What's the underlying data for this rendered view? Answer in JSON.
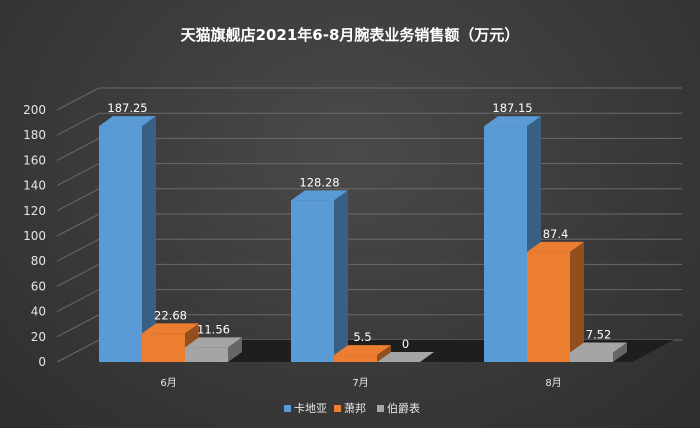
{
  "chart_data": {
    "type": "bar",
    "title": "天猫旗舰店2021年6-8月腕表业务销售额（万元）",
    "categories": [
      "6月",
      "7月",
      "8月"
    ],
    "series": [
      {
        "name": "卡地亚",
        "values": [
          187.25,
          128.28,
          187.15
        ],
        "color": "#5b9bd5"
      },
      {
        "name": "萧邦",
        "values": [
          22.68,
          5.5,
          87.4
        ],
        "color": "#ed7d31"
      },
      {
        "name": "伯爵表",
        "values": [
          11.56,
          0,
          7.52
        ],
        "color": "#a5a5a5"
      }
    ],
    "data_labels": [
      [
        "187.25",
        "128.28",
        "187.15"
      ],
      [
        "22.68",
        "5.5",
        "87.4"
      ],
      [
        "11.56",
        "0",
        "7.52"
      ]
    ],
    "yticks": [
      "0",
      "20",
      "40",
      "60",
      "80",
      "100",
      "120",
      "140",
      "160",
      "180",
      "200"
    ],
    "ylim": [
      0,
      200
    ],
    "grid": true,
    "legend_position": "bottom",
    "xlabel": "",
    "ylabel": ""
  }
}
